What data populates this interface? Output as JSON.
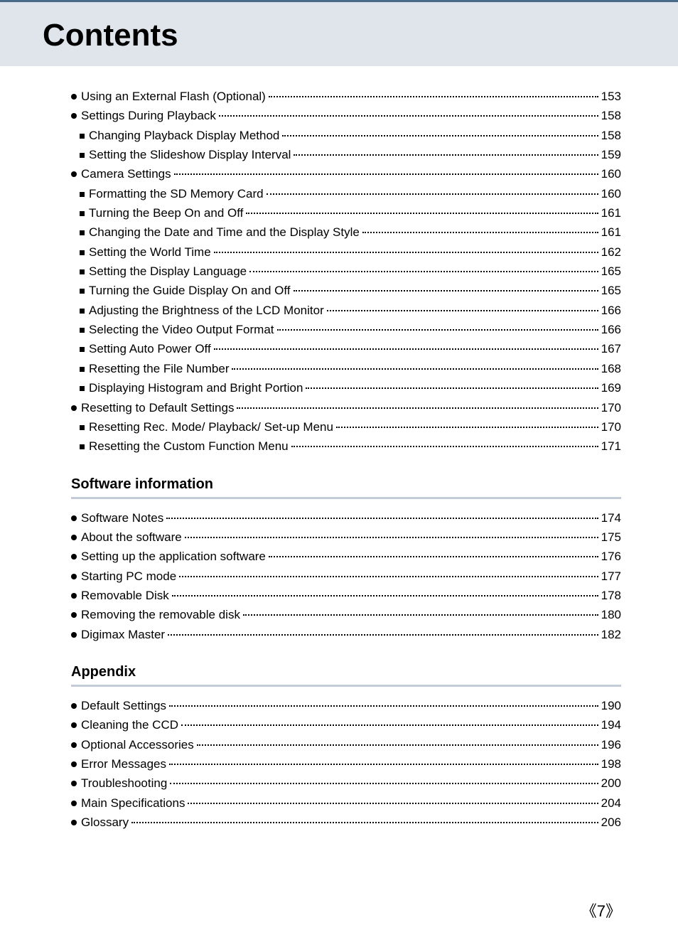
{
  "title": "Contents",
  "toc_main": [
    {
      "bullet": "round",
      "label": "Using an External Flash (Optional)",
      "page": "153"
    },
    {
      "bullet": "round",
      "label": "Settings During Playback",
      "page": "158"
    },
    {
      "bullet": "square",
      "label": "Changing Playback Display Method",
      "page": "158"
    },
    {
      "bullet": "square",
      "label": "Setting the Slideshow Display Interval",
      "page": "159"
    },
    {
      "bullet": "round",
      "label": "Camera Settings",
      "page": "160"
    },
    {
      "bullet": "square",
      "label": "Formatting the SD Memory Card",
      "page": "160"
    },
    {
      "bullet": "square",
      "label": "Turning the Beep On and Off",
      "page": "161"
    },
    {
      "bullet": "square",
      "label": "Changing the Date and Time and the Display Style",
      "page": "161"
    },
    {
      "bullet": "square",
      "label": "Setting the World Time",
      "page": "162"
    },
    {
      "bullet": "square",
      "label": "Setting the Display Language",
      "page": "165"
    },
    {
      "bullet": "square",
      "label": "Turning the Guide Display On and Off",
      "page": "165"
    },
    {
      "bullet": "square",
      "label": "Adjusting the Brightness of the LCD Monitor",
      "page": "166"
    },
    {
      "bullet": "square",
      "label": "Selecting the Video Output Format",
      "page": "166"
    },
    {
      "bullet": "square",
      "label": "Setting Auto Power Off",
      "page": "167"
    },
    {
      "bullet": "square",
      "label": "Resetting the File Number",
      "page": "168"
    },
    {
      "bullet": "square",
      "label": "Displaying Histogram and Bright Portion",
      "page": "169"
    },
    {
      "bullet": "round",
      "label": "Resetting to Default Settings",
      "page": "170"
    },
    {
      "bullet": "square",
      "label": "Resetting Rec. Mode/ Playback/ Set-up Menu",
      "page": "170"
    },
    {
      "bullet": "square",
      "label": "Resetting the Custom Function Menu",
      "page": "171"
    }
  ],
  "section_software": {
    "title": "Software information",
    "items": [
      {
        "bullet": "round",
        "label": "Software Notes",
        "page": "174"
      },
      {
        "bullet": "round",
        "label": "About the software",
        "page": "175"
      },
      {
        "bullet": "round",
        "label": "Setting up the application software",
        "page": "176"
      },
      {
        "bullet": "round",
        "label": "Starting PC mode",
        "page": "177"
      },
      {
        "bullet": "round",
        "label": "Removable Disk",
        "page": "178"
      },
      {
        "bullet": "round",
        "label": "Removing the removable disk",
        "page": "180"
      },
      {
        "bullet": "round",
        "label": "Digimax Master",
        "page": "182"
      }
    ]
  },
  "section_appendix": {
    "title": "Appendix",
    "items": [
      {
        "bullet": "round",
        "label": "Default Settings",
        "page": "190"
      },
      {
        "bullet": "round",
        "label": "Cleaning the CCD",
        "page": "194"
      },
      {
        "bullet": "round",
        "label": "Optional Accessories",
        "page": "196"
      },
      {
        "bullet": "round",
        "label": "Error Messages",
        "page": "198"
      },
      {
        "bullet": "round",
        "label": "Troubleshooting",
        "page": "200"
      },
      {
        "bullet": "round",
        "label": "Main Specifications",
        "page": "204"
      },
      {
        "bullet": "round",
        "label": "Glossary",
        "page": "206"
      }
    ]
  },
  "page_number": "7",
  "colors": {
    "header_bg": "#dfe5ea",
    "header_border": "#4a6a8a",
    "section_rule": "#c3ccd6"
  }
}
